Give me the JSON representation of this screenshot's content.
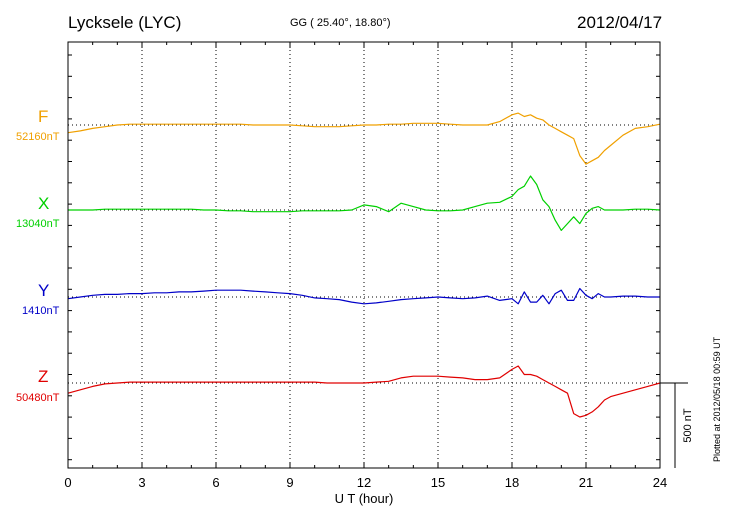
{
  "header": {
    "station": "Lycksele (LYC)",
    "coords": "GG ( 25.40°,  18.80°)",
    "date": "2012/04/17"
  },
  "plotted_note": "Plotted at 2012/05/18 00:59 UT",
  "scale_label": "500 nT",
  "chart_data": {
    "type": "line",
    "xlabel": "U T (hour)",
    "ylabel": "",
    "xlim": [
      0,
      24
    ],
    "xticks": [
      "0",
      "3",
      "6",
      "9",
      "12",
      "15",
      "18",
      "21",
      "24"
    ],
    "grid": true,
    "scale_bar_nT": 500,
    "x": [
      0,
      0.5,
      1,
      1.5,
      2,
      2.5,
      3,
      3.5,
      4,
      4.5,
      5,
      5.5,
      6,
      6.5,
      7,
      7.5,
      8,
      8.5,
      9,
      9.5,
      10,
      10.5,
      11,
      11.5,
      12,
      12.5,
      13,
      13.5,
      14,
      14.5,
      15,
      15.5,
      16,
      16.5,
      17,
      17.5,
      18,
      18.25,
      18.5,
      18.75,
      19,
      19.25,
      19.5,
      19.75,
      20,
      20.25,
      20.5,
      20.75,
      21,
      21.25,
      21.5,
      21.75,
      22,
      22.5,
      23,
      23.5,
      24
    ],
    "series": [
      {
        "name": "F",
        "baseline": "52160nT",
        "color": "#f0a000",
        "values": [
          -45,
          -35,
          -20,
          -10,
          0,
          5,
          5,
          5,
          5,
          5,
          5,
          5,
          5,
          5,
          5,
          0,
          0,
          0,
          0,
          -5,
          -10,
          -10,
          -10,
          -5,
          0,
          0,
          5,
          5,
          10,
          10,
          10,
          5,
          0,
          0,
          0,
          20,
          60,
          70,
          50,
          60,
          40,
          30,
          0,
          -20,
          -40,
          -60,
          -80,
          -180,
          -230,
          -210,
          -190,
          -150,
          -120,
          -60,
          -20,
          -10,
          5
        ]
      },
      {
        "name": "X",
        "baseline": "13040nT",
        "color": "#00d000",
        "values": [
          0,
          0,
          0,
          5,
          5,
          5,
          5,
          5,
          5,
          5,
          5,
          0,
          0,
          -5,
          -5,
          -10,
          -10,
          -10,
          -10,
          -5,
          -5,
          -5,
          -5,
          0,
          30,
          20,
          -10,
          40,
          20,
          0,
          -5,
          -5,
          0,
          20,
          40,
          45,
          80,
          120,
          140,
          200,
          150,
          60,
          20,
          -60,
          -120,
          -80,
          -40,
          -80,
          -20,
          10,
          20,
          0,
          0,
          0,
          5,
          5,
          0
        ]
      },
      {
        "name": "Y",
        "baseline": "1410nT",
        "color": "#0000c8",
        "values": [
          -10,
          0,
          10,
          15,
          15,
          20,
          20,
          25,
          25,
          30,
          30,
          35,
          40,
          40,
          40,
          35,
          30,
          25,
          20,
          10,
          -5,
          -10,
          -15,
          -30,
          -40,
          -35,
          -25,
          -15,
          -10,
          -5,
          0,
          -5,
          -10,
          -5,
          5,
          -20,
          -10,
          -40,
          30,
          -30,
          -30,
          10,
          -40,
          20,
          40,
          -20,
          -20,
          50,
          10,
          -10,
          20,
          0,
          0,
          5,
          5,
          0,
          0
        ]
      },
      {
        "name": "Z",
        "baseline": "50480nT",
        "color": "#e00000",
        "values": [
          -60,
          -40,
          -20,
          -5,
          0,
          5,
          5,
          5,
          5,
          5,
          5,
          5,
          5,
          5,
          5,
          5,
          5,
          5,
          5,
          5,
          5,
          0,
          0,
          0,
          0,
          5,
          10,
          30,
          40,
          40,
          40,
          35,
          30,
          20,
          20,
          30,
          80,
          100,
          50,
          50,
          40,
          20,
          0,
          -20,
          -40,
          -60,
          -180,
          -200,
          -190,
          -170,
          -140,
          -100,
          -80,
          -60,
          -40,
          -20,
          0
        ]
      }
    ]
  }
}
